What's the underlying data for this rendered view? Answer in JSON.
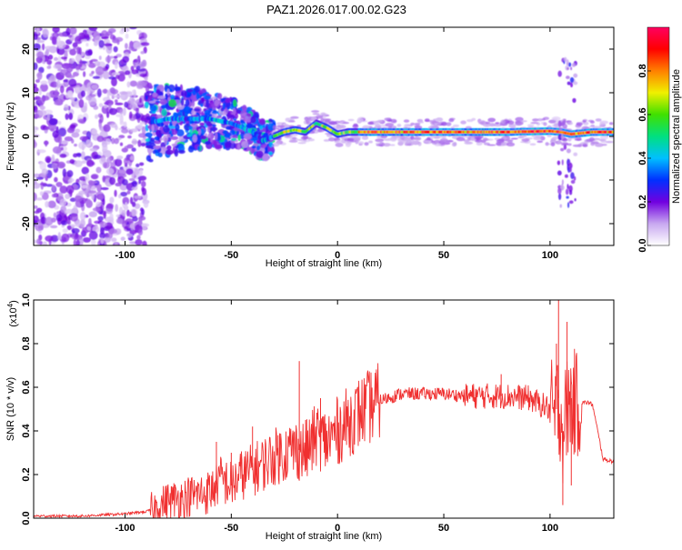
{
  "figure": {
    "title": "PAZ1.2026.017.00.02.G23"
  },
  "chart_data": [
    {
      "type": "heatmap",
      "name": "spectrogram",
      "title": "PAZ1.2026.017.00.02.G23",
      "xlabel": "Height of straight line (km)",
      "ylabel": "Frequency (Hz)",
      "xlim": [
        -143,
        130
      ],
      "ylim": [
        -25,
        25
      ],
      "xticks": [
        -100,
        -50,
        0,
        50,
        100
      ],
      "yticks": [
        -20,
        -10,
        0,
        10,
        20
      ],
      "xtick_labels": [
        "-100",
        "-50",
        "0",
        "50",
        "100"
      ],
      "ytick_labels": [
        "-20",
        "-10",
        "0",
        "10",
        "20"
      ],
      "colorbar": {
        "label": "Normalized spectral amplitude",
        "range": [
          0,
          1
        ],
        "ticks": [
          0.0,
          0.2,
          0.4,
          0.6,
          0.8
        ],
        "tick_labels": [
          "0.0",
          "0.2",
          "0.4",
          "0.6",
          "0.8"
        ],
        "colors": [
          "#ffffff",
          "#c8a8f0",
          "#7000e0",
          "#0030ff",
          "#00c0ff",
          "#00e080",
          "#40e000",
          "#f0f000",
          "#ff8000",
          "#ff0000",
          "#ff0060"
        ]
      },
      "ridge": {
        "x": [
          -90,
          -80,
          -70,
          -60,
          -50,
          -40,
          -35,
          -30,
          -25,
          -20,
          -15,
          -10,
          -5,
          0,
          5,
          10,
          20,
          40,
          60,
          80,
          100,
          105,
          110,
          120,
          130
        ],
        "y": [
          3,
          4,
          4,
          4,
          3,
          1,
          -1,
          0,
          1,
          1.5,
          1,
          3,
          2,
          0.5,
          1,
          1,
          1,
          1,
          1,
          1,
          1.2,
          1,
          0.5,
          1,
          1
        ]
      }
    },
    {
      "type": "line",
      "name": "snr",
      "xlabel": "Height of straight line (km)",
      "ylabel": "SNR (10 * v/v)",
      "multiplier_label": "(x10",
      "multiplier_exp": "4",
      "multiplier_close": ")",
      "xlim": [
        -143,
        130
      ],
      "ylim": [
        0,
        1.0
      ],
      "xticks": [
        -100,
        -50,
        0,
        50,
        100
      ],
      "yticks": [
        0.0,
        0.2,
        0.4,
        0.6,
        0.8,
        1.0
      ],
      "xtick_labels": [
        "-100",
        "-50",
        "0",
        "50",
        "100"
      ],
      "ytick_labels": [
        "0.0",
        "0.2",
        "0.4",
        "0.6",
        "0.8",
        "1.0"
      ],
      "color": "#f03030",
      "series": [
        {
          "name": "SNR",
          "x": [
            -143,
            -120,
            -100,
            -90,
            -85,
            -80,
            -70,
            -60,
            -55,
            -50,
            -45,
            -40,
            -35,
            -30,
            -25,
            -20,
            -15,
            -10,
            -5,
            0,
            5,
            10,
            20,
            30,
            40,
            50,
            60,
            70,
            80,
            90,
            100,
            102,
            104,
            106,
            108,
            110,
            112,
            115,
            118,
            120,
            125,
            130
          ],
          "y": [
            0.01,
            0.01,
            0.02,
            0.03,
            0.05,
            0.08,
            0.1,
            0.12,
            0.18,
            0.15,
            0.2,
            0.22,
            0.25,
            0.28,
            0.3,
            0.32,
            0.3,
            0.38,
            0.35,
            0.4,
            0.44,
            0.48,
            0.54,
            0.57,
            0.57,
            0.57,
            0.56,
            0.56,
            0.56,
            0.55,
            0.5,
            0.45,
            0.55,
            0.4,
            0.5,
            0.55,
            0.52,
            0.53,
            0.53,
            0.52,
            0.27,
            0.26
          ]
        }
      ],
      "spikes": [
        {
          "x": -57,
          "y": 0.35
        },
        {
          "x": -50,
          "y": 0.3
        },
        {
          "x": -40,
          "y": 0.42
        },
        {
          "x": -28,
          "y": 0.38
        },
        {
          "x": -18,
          "y": 0.72
        },
        {
          "x": -15,
          "y": 0.45
        },
        {
          "x": -8,
          "y": 0.55
        },
        {
          "x": 77,
          "y": 0.66
        },
        {
          "x": 103,
          "y": 0.8
        },
        {
          "x": 104,
          "y": 1.0
        },
        {
          "x": 106,
          "y": 0.06
        },
        {
          "x": 108,
          "y": 0.9
        },
        {
          "x": 110,
          "y": 0.15
        }
      ]
    }
  ]
}
